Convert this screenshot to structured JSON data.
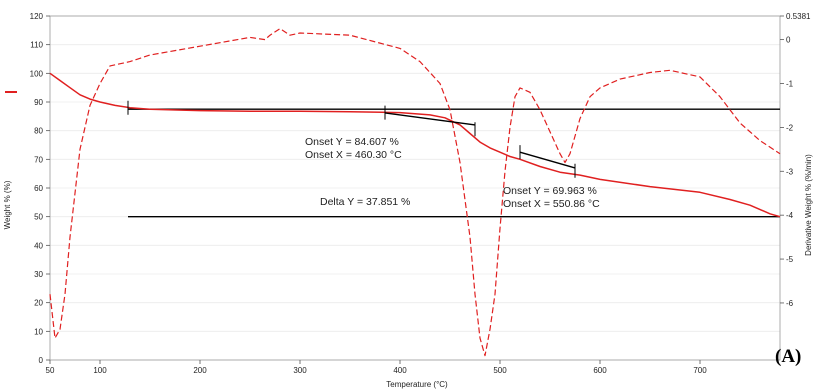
{
  "panel_label": "(A)",
  "chart_data": {
    "type": "line",
    "xlabel": "Temperature (°C)",
    "ylabel_left": "Weight % (%)",
    "ylabel_right": "Derivative Weight % (%/min)",
    "xlim": [
      50,
      780
    ],
    "ylim_left": [
      0,
      120
    ],
    "ylim_right": [
      -7.3,
      0.5381
    ],
    "x_ticks": [
      "50",
      "100",
      "200",
      "300",
      "400",
      "500",
      "600",
      "700"
    ],
    "y_left_ticks": [
      "0",
      "10",
      "20",
      "30",
      "40",
      "50",
      "60",
      "70",
      "80",
      "90",
      "100",
      "110",
      "120"
    ],
    "y_right_ticks": [
      "0.5381",
      "0",
      "-1",
      "-2",
      "-3",
      "-4",
      "-5",
      "-6"
    ],
    "grid": "horizontal-light",
    "colors": {
      "series": "#e02020",
      "reference": "#000000"
    },
    "series": [
      {
        "axis": "left",
        "style": "solid",
        "x": [
          50,
          60,
          70,
          80,
          90,
          100,
          115,
          130,
          150,
          200,
          250,
          300,
          350,
          400,
          430,
          445,
          460,
          470,
          480,
          490,
          500,
          510,
          520,
          540,
          560,
          580,
          600,
          650,
          700,
          730,
          750,
          770,
          780
        ],
        "y": [
          100,
          97.5,
          95,
          92.5,
          91,
          90,
          88.8,
          88,
          87.5,
          87,
          86.8,
          86.8,
          86.6,
          86.3,
          85.5,
          84.5,
          82,
          79,
          76,
          74,
          72.5,
          71,
          70,
          67.5,
          65.5,
          64.5,
          63,
          60.5,
          58.5,
          56,
          54,
          51,
          50
        ]
      },
      {
        "axis": "right",
        "style": "dashed",
        "x": [
          50,
          55,
          60,
          65,
          70,
          80,
          90,
          100,
          110,
          130,
          150,
          200,
          250,
          265,
          270,
          280,
          290,
          300,
          350,
          400,
          420,
          440,
          450,
          460,
          470,
          475,
          480,
          485,
          490,
          495,
          500,
          505,
          510,
          515,
          520,
          530,
          540,
          550,
          560,
          565,
          570,
          580,
          590,
          600,
          620,
          650,
          670,
          700,
          720,
          740,
          760,
          780
        ],
        "y": [
          -5.8,
          -6.8,
          -6.6,
          -5.8,
          -4.5,
          -2.5,
          -1.5,
          -1.0,
          -0.6,
          -0.5,
          -0.35,
          -0.15,
          0.05,
          0.0,
          0.1,
          0.25,
          0.1,
          0.15,
          0.1,
          -0.2,
          -0.5,
          -1.0,
          -1.6,
          -2.8,
          -4.5,
          -5.8,
          -6.8,
          -7.2,
          -6.6,
          -5.8,
          -4.3,
          -3.0,
          -2.0,
          -1.3,
          -1.1,
          -1.2,
          -1.6,
          -2.1,
          -2.6,
          -2.8,
          -2.6,
          -1.8,
          -1.3,
          -1.1,
          -0.9,
          -0.75,
          -0.7,
          -0.85,
          -1.3,
          -1.9,
          -2.3,
          -2.6
        ]
      }
    ],
    "reference_lines": [
      {
        "axis": "left",
        "y": 87.5,
        "x_from": 128,
        "x_to": 780
      },
      {
        "axis": "left",
        "y": 50,
        "x_from": 128,
        "x_to": 780
      }
    ],
    "tangent_segments": [
      {
        "x": [
          385,
          475
        ],
        "y": [
          86.2,
          82
        ]
      },
      {
        "x": [
          520,
          575
        ],
        "y": [
          72.5,
          67
        ]
      }
    ],
    "markers": [
      {
        "x": 128,
        "y": 88
      },
      {
        "x": 385,
        "y": 86.3
      },
      {
        "x": 475,
        "y": 80.5
      },
      {
        "x": 520,
        "y": 72.5
      },
      {
        "x": 575,
        "y": 66
      }
    ],
    "annotations": [
      "Onset Y = 84.607 %",
      "Onset X = 460.30 °C",
      "Delta Y = 37.851 %",
      "Onset Y = 69.963 %",
      "Onset X = 550.86 °C"
    ]
  }
}
